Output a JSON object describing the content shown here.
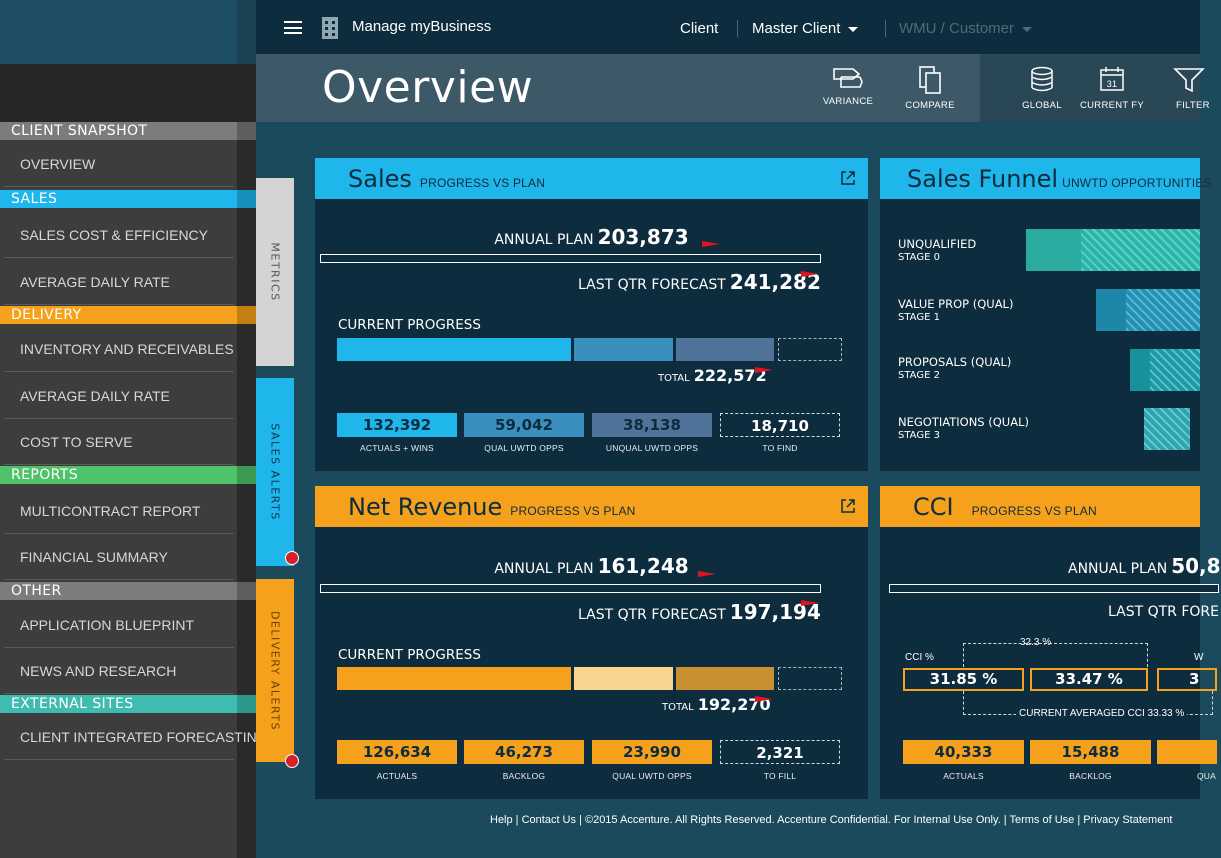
{
  "app": {
    "title": "Manage myBusiness"
  },
  "topbar": {
    "client": "Client",
    "master_client": "Master Client",
    "wmu": "WMU / Customer"
  },
  "page": {
    "title": "Overview"
  },
  "toolbar": {
    "variance": "VARIANCE",
    "compare": "COMPARE",
    "global": "GLOBAL",
    "current_fy": "CURRENT FY",
    "filter": "FILTER",
    "calendar_day": "31"
  },
  "sidebar": {
    "sections": [
      {
        "title": "CLIENT SNAPSHOT",
        "color": "#7c7c7c",
        "items": [
          "OVERVIEW"
        ]
      },
      {
        "title": "SALES",
        "color": "#1fb6ec",
        "items": [
          "SALES COST & EFFICIENCY",
          "AVERAGE DAILY RATE"
        ]
      },
      {
        "title": "DELIVERY",
        "color": "#f5a11c",
        "items": [
          "INVENTORY AND RECEIVABLES",
          "AVERAGE DAILY RATE",
          "COST TO SERVE"
        ]
      },
      {
        "title": "REPORTS",
        "color": "#4fc26a",
        "items": [
          "MULTICONTRACT REPORT",
          "FINANCIAL SUMMARY"
        ]
      },
      {
        "title": "OTHER",
        "color": "#7c7c7c",
        "items": [
          "APPLICATION BLUEPRINT",
          "NEWS AND RESEARCH"
        ]
      },
      {
        "title": "EXTERNAL SITES",
        "color": "#3fbcb0",
        "items": [
          "CLIENT INTEGRATED FORECASTING"
        ]
      }
    ]
  },
  "vtabs": {
    "metrics": "METRICS",
    "sales_alerts": "SALES ALERTS",
    "delivery_alerts": "DELIVERY ALERTS"
  },
  "sales": {
    "title": "Sales",
    "subtitle": "PROGRESS VS PLAN",
    "annual_plan_label": "ANNUAL PLAN",
    "annual_plan": "203,873",
    "forecast_label": "LAST QTR FORECAST",
    "forecast": "241,282",
    "progress_label": "CURRENT PROGRESS",
    "total_label": "TOTAL",
    "total": "222,572",
    "boxes": [
      {
        "value": "132,392",
        "caption": "ACTUALS + WINS"
      },
      {
        "value": "59,042",
        "caption": "QUAL UWTD OPPS"
      },
      {
        "value": "38,138",
        "caption": "UNQUAL UWTD OPPS"
      },
      {
        "value": "18,710",
        "caption": "TO FIND"
      }
    ]
  },
  "funnel": {
    "title": "Sales Funnel",
    "subtitle": "UNWTD OPPORTUNITIES",
    "stages": [
      {
        "name": "UNQUALIFIED",
        "stage": "STAGE 0"
      },
      {
        "name": "VALUE PROP (QUAL)",
        "stage": "STAGE 1"
      },
      {
        "name": "PROPOSALS (QUAL)",
        "stage": "STAGE 2"
      },
      {
        "name": "NEGOTIATIONS (QUAL)",
        "stage": "STAGE 3"
      }
    ]
  },
  "revenue": {
    "title": "Net Revenue",
    "subtitle": "PROGRESS VS PLAN",
    "annual_plan_label": "ANNUAL PLAN",
    "annual_plan": "161,248",
    "forecast_label": "LAST QTR FORECAST",
    "forecast": "197,194",
    "progress_label": "CURRENT PROGRESS",
    "total_label": "TOTAL",
    "total": "192,270",
    "boxes": [
      {
        "value": "126,634",
        "caption": "ACTUALS"
      },
      {
        "value": "46,273",
        "caption": "BACKLOG"
      },
      {
        "value": "23,990",
        "caption": "QUAL UWTD OPPS"
      },
      {
        "value": "2,321",
        "caption": "TO FILL"
      }
    ]
  },
  "cci": {
    "title": "CCI",
    "subtitle": "PROGRESS VS PLAN",
    "annual_plan_label": "ANNUAL PLAN",
    "annual_plan": "50,8",
    "forecast_label": "LAST QTR FORE",
    "pct_label": "CCI %",
    "bracket_value": "32.3 %",
    "pct1": "31.85 %",
    "pct2": "33.47 %",
    "pct3": "3",
    "avg_label": "CURRENT AVERAGED CCI 33.33 %",
    "boxes": [
      {
        "value": "40,333",
        "caption": "ACTUALS"
      },
      {
        "value": "15,488",
        "caption": "BACKLOG"
      },
      {
        "value": "",
        "caption": "QUA"
      }
    ]
  },
  "footer": {
    "text": "Help | Contact Us | ©2015 Accenture. All Rights Reserved. Accenture Confidential. For Internal Use Only. | Terms of Use | Privacy Statement"
  }
}
